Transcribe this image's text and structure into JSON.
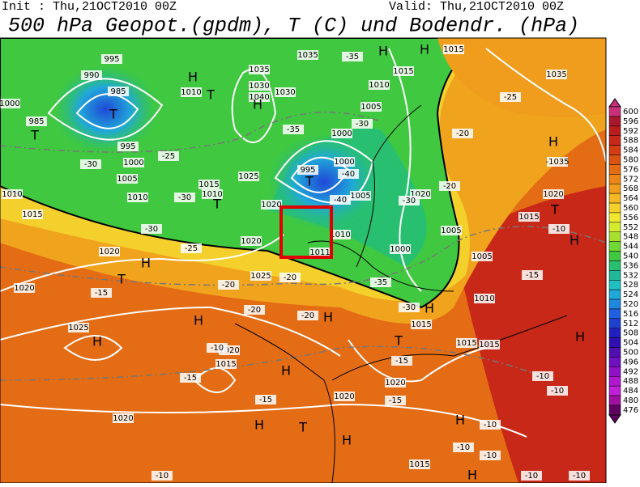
{
  "header": {
    "init": "Init : Thu,21OCT2010 00Z",
    "valid": "Valid: Thu,21OCT2010 00Z",
    "title": "500 hPa Geopot.(gpdm), T (C) und Bodendr. (hPa)"
  },
  "colorbar": {
    "values": [
      600,
      596,
      592,
      588,
      584,
      580,
      576,
      572,
      568,
      564,
      560,
      556,
      552,
      548,
      544,
      540,
      536,
      532,
      528,
      524,
      520,
      516,
      512,
      508,
      504,
      500,
      496,
      492,
      488,
      484,
      480,
      476
    ],
    "colors": [
      "#c8307c",
      "#a8182c",
      "#b81c1c",
      "#c82818",
      "#d43c14",
      "#dc5414",
      "#e46c14",
      "#ec8418",
      "#f09c1c",
      "#f4b824",
      "#f4d02c",
      "#f0e830",
      "#d4ec30",
      "#a8e030",
      "#70d834",
      "#40c840",
      "#28c070",
      "#20b898",
      "#20c0c0",
      "#20a8d8",
      "#2088e0",
      "#2060e0",
      "#2040d0",
      "#2020c0",
      "#3010b0",
      "#5010b0",
      "#7010c0",
      "#9010c8",
      "#b018d0",
      "#c020d8",
      "#a010a0",
      "#600060"
    ]
  },
  "map": {
    "labels": [
      "995",
      "990",
      "985",
      "T",
      "985",
      "T",
      "1000",
      "995",
      "1000",
      "1005",
      "1010",
      "1015",
      "1010",
      "-30",
      "-25",
      "-30",
      "-30",
      "-25",
      "H",
      "T",
      "1010",
      "1035",
      "1030",
      "1040",
      "1030",
      "H",
      "-35",
      "1015",
      "1010",
      "1025",
      "T",
      "1020",
      "995",
      "T",
      "-40",
      "1000",
      "1000",
      "-30",
      "1005",
      "1010",
      "1015",
      "1035",
      "-35",
      "H",
      "H",
      "1015",
      "1020",
      "1005",
      "-40",
      "1010",
      "1011",
      "1000",
      "1005",
      "1005",
      "-30",
      "-20",
      "-20",
      "-25",
      "1035",
      "H",
      "-1035",
      "1020",
      "T",
      "1015",
      "-10",
      "H",
      "-15",
      "1020",
      "1020",
      "H",
      "T",
      "1020",
      "-15",
      "1025",
      "-20",
      "-20",
      "-20",
      "-20",
      "-35",
      "1010",
      "-30",
      "H",
      "1015",
      "H",
      "H",
      "1025",
      "H",
      "1020",
      "-10",
      "1015",
      "-15",
      "H",
      "T",
      "1015",
      "1015",
      "-15",
      "1020",
      "-15",
      "-15",
      "1020",
      "H",
      "T",
      "H",
      "1020",
      "H",
      "-10",
      "-10",
      "H",
      "-10",
      "-10",
      "-10",
      "1015",
      "-10",
      "H",
      "-10",
      "-10"
    ]
  }
}
